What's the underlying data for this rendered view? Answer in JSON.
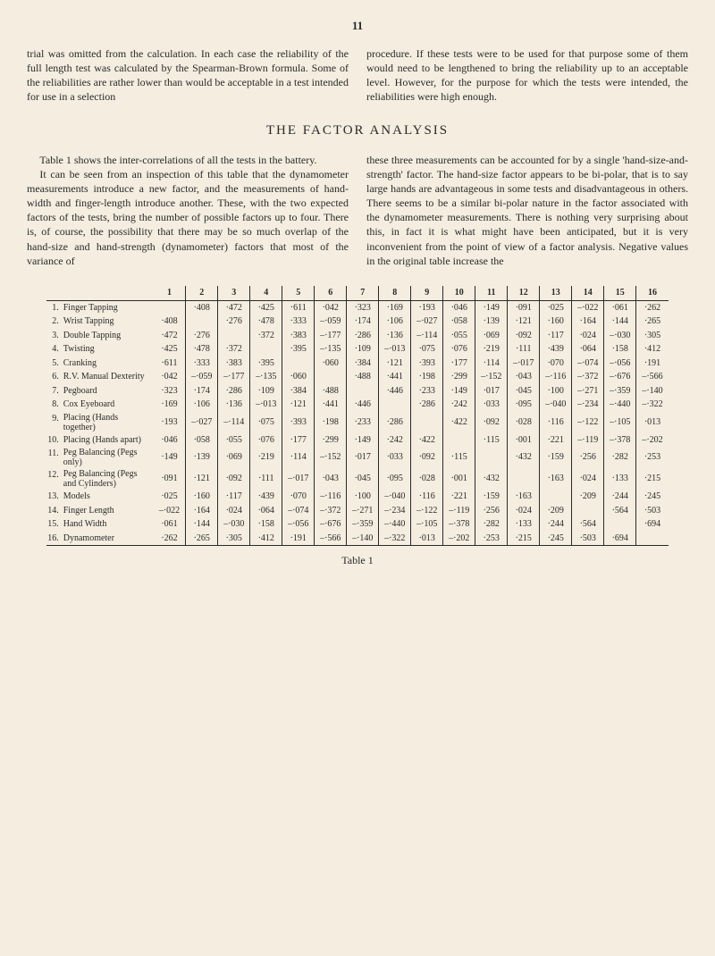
{
  "page_number": "11",
  "intro_para1_left": "trial was omitted from the calculation. In each case the reliability of the full length test was calculated by the Spearman-Brown formula. Some of the reliabilities are rather lower than would be acceptable in a test intended for use in a selection",
  "intro_para1_right": "procedure. If these tests were to be used for that purpose some of them would need to be lengthened to bring the reliability up to an acceptable level. However, for the purpose for which the tests were intended, the reliabilities were high enough.",
  "section_title": "THE FACTOR ANALYSIS",
  "body_left_p1": "Table 1 shows the inter-correlations of all the tests in the battery.",
  "body_left_p2": "It can be seen from an inspection of this table that the dynamometer measurements introduce a new factor, and the measurements of hand-width and finger-length introduce another. These, with the two expected factors of the tests, bring the number of possible factors up to four. There is, of course, the possibility that there may be so much overlap of the hand-size and hand-strength (dynamometer) factors that most of the variance of",
  "body_right_p1": "these three measurements can be accounted for by a single 'hand-size-and-strength' factor. The hand-size factor appears to be bi-polar, that is to say large hands are advantageous in some tests and disadvantageous in others. There seems to be a similar bi-polar nature in the factor associated with the dynamometer measurements. There is nothing very surprising about this, in fact it is what might have been anticipated, but it is very inconvenient from the point of view of a factor analysis. Negative values in the original table increase the",
  "table_caption": "Table 1",
  "headers": [
    "1",
    "2",
    "3",
    "4",
    "5",
    "6",
    "7",
    "8",
    "9",
    "10",
    "11",
    "12",
    "13",
    "14",
    "15",
    "16"
  ],
  "rows": [
    {
      "n": "1.",
      "label": "Finger Tapping",
      "v": [
        "",
        "·408",
        "·472",
        "·425",
        "·611",
        "·042",
        "·323",
        "·169",
        "·193",
        "·046",
        "·149",
        "·091",
        "·025",
        "–·022",
        "·061",
        "·262"
      ]
    },
    {
      "n": "2.",
      "label": "Wrist Tapping",
      "v": [
        "·408",
        "",
        "·276",
        "·478",
        "·333",
        "–·059",
        "·174",
        "·106",
        "–·027",
        "·058",
        "·139",
        "·121",
        "·160",
        "·164",
        "·144",
        "·265"
      ]
    },
    {
      "n": "3.",
      "label": "Double Tapping",
      "v": [
        "·472",
        "·276",
        "",
        "·372",
        "·383",
        "–·177",
        "·286",
        "·136",
        "–·114",
        "·055",
        "·069",
        "·092",
        "·117",
        "·024",
        "–·030",
        "·305"
      ]
    },
    {
      "n": "4.",
      "label": "Twisting",
      "v": [
        "·425",
        "·478",
        "·372",
        "",
        "·395",
        "–·135",
        "·109",
        "–·013",
        "·075",
        "·076",
        "·219",
        "·111",
        "·439",
        "·064",
        "·158",
        "·412"
      ]
    },
    {
      "n": "5.",
      "label": "Cranking",
      "v": [
        "·611",
        "·333",
        "·383",
        "·395",
        "",
        "·060",
        "·384",
        "·121",
        "·393",
        "·177",
        "·114",
        "–·017",
        "·070",
        "–·074",
        "–·056",
        "·191"
      ]
    },
    {
      "n": "6.",
      "label": "R.V. Manual Dexterity",
      "v": [
        "·042",
        "–·059",
        "–·177",
        "–·135",
        "·060",
        "",
        "·488",
        "·441",
        "·198",
        "·299",
        "–·152",
        "·043",
        "–·116",
        "–·372",
        "–·676",
        "–·566"
      ]
    },
    {
      "n": "7.",
      "label": "Pegboard",
      "v": [
        "·323",
        "·174",
        "·286",
        "·109",
        "·384",
        "·488",
        "",
        "·446",
        "·233",
        "·149",
        "·017",
        "·045",
        "·100",
        "–·271",
        "–·359",
        "–·140"
      ]
    },
    {
      "n": "8.",
      "label": "Cox Eyeboard",
      "v": [
        "·169",
        "·106",
        "·136",
        "–·013",
        "·121",
        "·441",
        "·446",
        "",
        "·286",
        "·242",
        "·033",
        "·095",
        "–·040",
        "–·234",
        "–·440",
        "–·322"
      ]
    },
    {
      "n": "9.",
      "label": "Placing (Hands together)",
      "v": [
        "·193",
        "–·027",
        "–·114",
        "·075",
        "·393",
        "·198",
        "·233",
        "·286",
        "",
        "·422",
        "·092",
        "·028",
        "·116",
        "–·122",
        "–·105",
        "·013"
      ]
    },
    {
      "n": "10.",
      "label": "Placing (Hands apart)",
      "v": [
        "·046",
        "·058",
        "·055",
        "·076",
        "·177",
        "·299",
        "·149",
        "·242",
        "·422",
        "",
        "·115",
        "·001",
        "·221",
        "–·119",
        "–·378",
        "–·202"
      ]
    },
    {
      "n": "11.",
      "label": "Peg Balancing (Pegs only)",
      "v": [
        "·149",
        "·139",
        "·069",
        "·219",
        "·114",
        "–·152",
        "·017",
        "·033",
        "·092",
        "·115",
        "",
        "·432",
        "·159",
        "·256",
        "·282",
        "·253"
      ]
    },
    {
      "n": "12.",
      "label": "Peg Balancing (Pegs and Cylinders)",
      "v": [
        "·091",
        "·121",
        "·092",
        "·111",
        "–·017",
        "·043",
        "·045",
        "·095",
        "·028",
        "·001",
        "·432",
        "",
        "·163",
        "·024",
        "·133",
        "·215"
      ]
    },
    {
      "n": "13.",
      "label": "Models",
      "v": [
        "·025",
        "·160",
        "·117",
        "·439",
        "·070",
        "–·116",
        "·100",
        "–·040",
        "·116",
        "·221",
        "·159",
        "·163",
        "",
        "·209",
        "·244",
        "·245"
      ]
    },
    {
      "n": "14.",
      "label": "Finger Length",
      "v": [
        "–·022",
        "·164",
        "·024",
        "·064",
        "–·074",
        "–·372",
        "–·271",
        "–·234",
        "–·122",
        "–·119",
        "·256",
        "·024",
        "·209",
        "",
        "·564",
        "·503"
      ]
    },
    {
      "n": "15.",
      "label": "Hand Width",
      "v": [
        "·061",
        "·144",
        "–·030",
        "·158",
        "–·056",
        "–·676",
        "–·359",
        "–·440",
        "–·105",
        "–·378",
        "·282",
        "·133",
        "·244",
        "·564",
        "",
        "·694"
      ]
    },
    {
      "n": "16.",
      "label": "Dynamometer",
      "v": [
        "·262",
        "·265",
        "·305",
        "·412",
        "·191",
        "–·566",
        "–·140",
        "–·322",
        "·013",
        "–·202",
        "·253",
        "·215",
        "·245",
        "·503",
        "·694",
        ""
      ]
    }
  ]
}
